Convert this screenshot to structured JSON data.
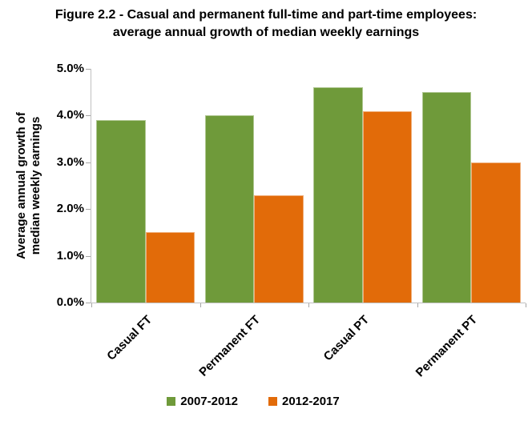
{
  "chart_data": {
    "type": "bar",
    "title": "Figure 2.2 - Casual and permanent full-time and part-time employees: average annual growth of median weekly earnings",
    "title_lines": [
      "Figure 2.2 - Casual and permanent full-time and part-time employees:",
      "average annual growth of median weekly earnings"
    ],
    "ylabel": "Average annual growth of median weekly earnings",
    "ylabel_lines": [
      "Average annual growth of",
      "median weekly earnings"
    ],
    "xlabel": "",
    "categories": [
      "Casual FT",
      "Permanent FT",
      "Casual PT",
      "Permanent PT"
    ],
    "series": [
      {
        "name": "2007-2012",
        "color": "#6F9A3A",
        "values": [
          3.9,
          4.0,
          4.6,
          4.5
        ]
      },
      {
        "name": "2012-2017",
        "color": "#E26B09",
        "values": [
          1.5,
          2.3,
          4.1,
          3.0
        ]
      }
    ],
    "ylim": [
      0,
      5
    ],
    "y_tick_step": 1,
    "y_tick_labels": [
      "0.0%",
      "1.0%",
      "2.0%",
      "3.0%",
      "4.0%",
      "5.0%"
    ],
    "grid": false,
    "legend_position": "bottom",
    "colors": {
      "axis_line": "#C0C0C0",
      "tick_mark": "#A6A6A6",
      "text": "#000000",
      "background": "#FFFFFF"
    }
  }
}
